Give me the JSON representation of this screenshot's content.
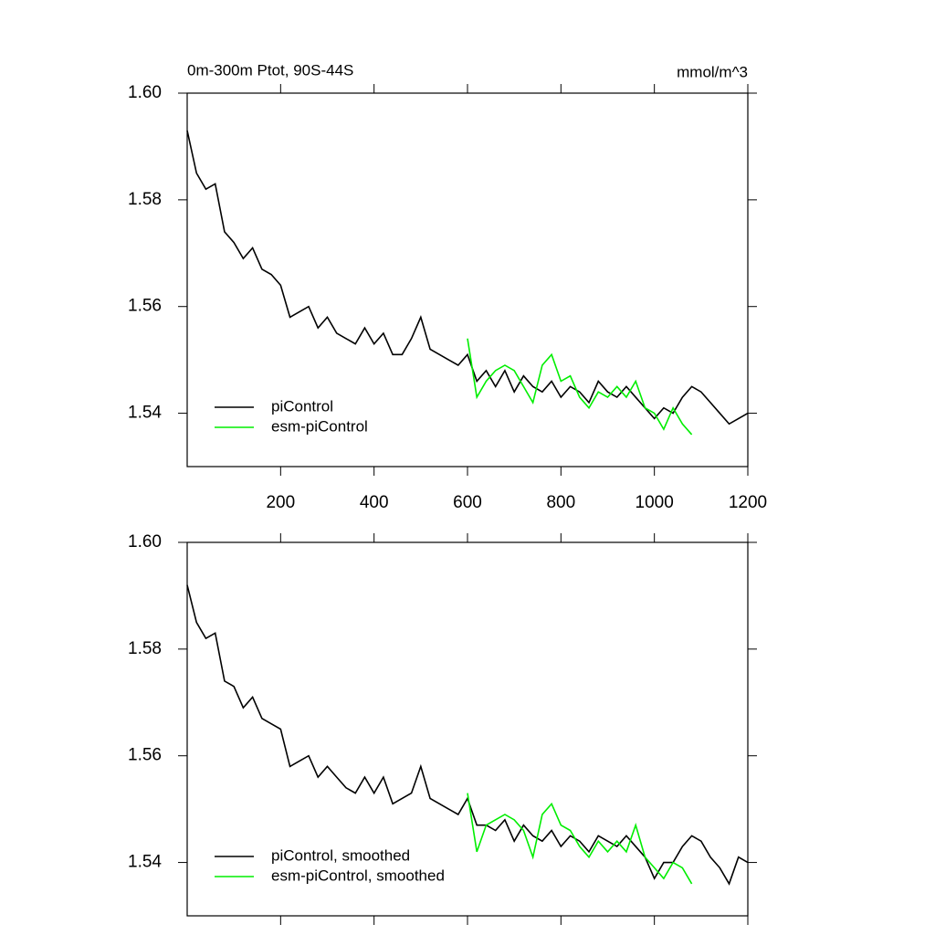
{
  "chart_data": [
    {
      "type": "line",
      "title": "0m-300m Ptot, 90S-44S",
      "units": "mmol/m^3",
      "xlim": [
        0,
        1200
      ],
      "xticks": [
        200,
        400,
        600,
        800,
        1000,
        1200
      ],
      "xticklabels": true,
      "ylim": [
        1.53,
        1.6
      ],
      "yticks": [
        {
          "value": 1.54,
          "label": "1.54"
        },
        {
          "value": 1.56,
          "label": "1.56"
        },
        {
          "value": 1.58,
          "label": "1.58"
        },
        {
          "value": 1.6,
          "label": "1.60"
        }
      ],
      "legend": "lower left",
      "series": [
        {
          "name": "piControl",
          "color": "#000000",
          "x": [
            0,
            20,
            40,
            60,
            80,
            100,
            120,
            140,
            160,
            180,
            200,
            220,
            240,
            260,
            280,
            300,
            320,
            340,
            360,
            380,
            400,
            420,
            440,
            460,
            480,
            500,
            520,
            540,
            560,
            580,
            600,
            620,
            640,
            660,
            680,
            700,
            720,
            740,
            760,
            780,
            800,
            820,
            840,
            860,
            880,
            900,
            920,
            940,
            960,
            980,
            1000,
            1020,
            1040,
            1060,
            1080,
            1100,
            1120,
            1140,
            1160,
            1180,
            1200
          ],
          "values": [
            1.593,
            1.585,
            1.582,
            1.583,
            1.574,
            1.572,
            1.569,
            1.571,
            1.567,
            1.566,
            1.564,
            1.558,
            1.559,
            1.56,
            1.556,
            1.558,
            1.555,
            1.554,
            1.553,
            1.556,
            1.553,
            1.555,
            1.551,
            1.551,
            1.554,
            1.558,
            1.552,
            1.551,
            1.55,
            1.549,
            1.551,
            1.546,
            1.548,
            1.545,
            1.548,
            1.544,
            1.547,
            1.545,
            1.544,
            1.546,
            1.543,
            1.545,
            1.544,
            1.542,
            1.546,
            1.544,
            1.543,
            1.545,
            1.543,
            1.541,
            1.539,
            1.541,
            1.54,
            1.543,
            1.545,
            1.544,
            1.542,
            1.54,
            1.538,
            1.539,
            1.54
          ]
        },
        {
          "name": "esm-piControl",
          "color": "#00ee00",
          "x": [
            600,
            620,
            640,
            660,
            680,
            700,
            720,
            740,
            760,
            780,
            800,
            820,
            840,
            860,
            880,
            900,
            920,
            940,
            960,
            980,
            1000,
            1020,
            1040,
            1060,
            1080
          ],
          "values": [
            1.554,
            1.543,
            1.546,
            1.548,
            1.549,
            1.548,
            1.545,
            1.542,
            1.549,
            1.551,
            1.546,
            1.547,
            1.543,
            1.541,
            1.544,
            1.543,
            1.545,
            1.543,
            1.546,
            1.541,
            1.54,
            1.537,
            1.541,
            1.538,
            1.536
          ]
        }
      ]
    },
    {
      "type": "line",
      "xlim": [
        0,
        1200
      ],
      "xticks": [
        200,
        400,
        600,
        800,
        1000,
        1200
      ],
      "xticklabels": false,
      "ylim": [
        1.53,
        1.6
      ],
      "yticks": [
        {
          "value": 1.54,
          "label": "1.54"
        },
        {
          "value": 1.56,
          "label": "1.56"
        },
        {
          "value": 1.58,
          "label": "1.58"
        },
        {
          "value": 1.6,
          "label": "1.60"
        }
      ],
      "legend": "lower left",
      "series": [
        {
          "name": "piControl, smoothed",
          "color": "#000000",
          "x": [
            0,
            20,
            40,
            60,
            80,
            100,
            120,
            140,
            160,
            180,
            200,
            220,
            240,
            260,
            280,
            300,
            320,
            340,
            360,
            380,
            400,
            420,
            440,
            460,
            480,
            500,
            520,
            540,
            560,
            580,
            600,
            620,
            640,
            660,
            680,
            700,
            720,
            740,
            760,
            780,
            800,
            820,
            840,
            860,
            880,
            900,
            920,
            940,
            960,
            980,
            1000,
            1020,
            1040,
            1060,
            1080,
            1100,
            1120,
            1140,
            1160,
            1180,
            1200
          ],
          "values": [
            1.592,
            1.585,
            1.582,
            1.583,
            1.574,
            1.573,
            1.569,
            1.571,
            1.567,
            1.566,
            1.565,
            1.558,
            1.559,
            1.56,
            1.556,
            1.558,
            1.556,
            1.554,
            1.553,
            1.556,
            1.553,
            1.556,
            1.551,
            1.552,
            1.553,
            1.558,
            1.552,
            1.551,
            1.55,
            1.549,
            1.552,
            1.547,
            1.547,
            1.546,
            1.548,
            1.544,
            1.547,
            1.545,
            1.544,
            1.546,
            1.543,
            1.545,
            1.544,
            1.542,
            1.545,
            1.544,
            1.543,
            1.545,
            1.543,
            1.541,
            1.537,
            1.54,
            1.54,
            1.543,
            1.545,
            1.544,
            1.541,
            1.539,
            1.536,
            1.541,
            1.54
          ]
        },
        {
          "name": "esm-piControl, smoothed",
          "color": "#00ee00",
          "x": [
            600,
            620,
            640,
            660,
            680,
            700,
            720,
            740,
            760,
            780,
            800,
            820,
            840,
            860,
            880,
            900,
            920,
            940,
            960,
            980,
            1000,
            1020,
            1040,
            1060,
            1080
          ],
          "values": [
            1.553,
            1.542,
            1.547,
            1.548,
            1.549,
            1.548,
            1.546,
            1.541,
            1.549,
            1.551,
            1.547,
            1.546,
            1.543,
            1.541,
            1.544,
            1.542,
            1.544,
            1.542,
            1.547,
            1.541,
            1.539,
            1.537,
            1.54,
            1.539,
            1.536
          ]
        }
      ]
    }
  ]
}
